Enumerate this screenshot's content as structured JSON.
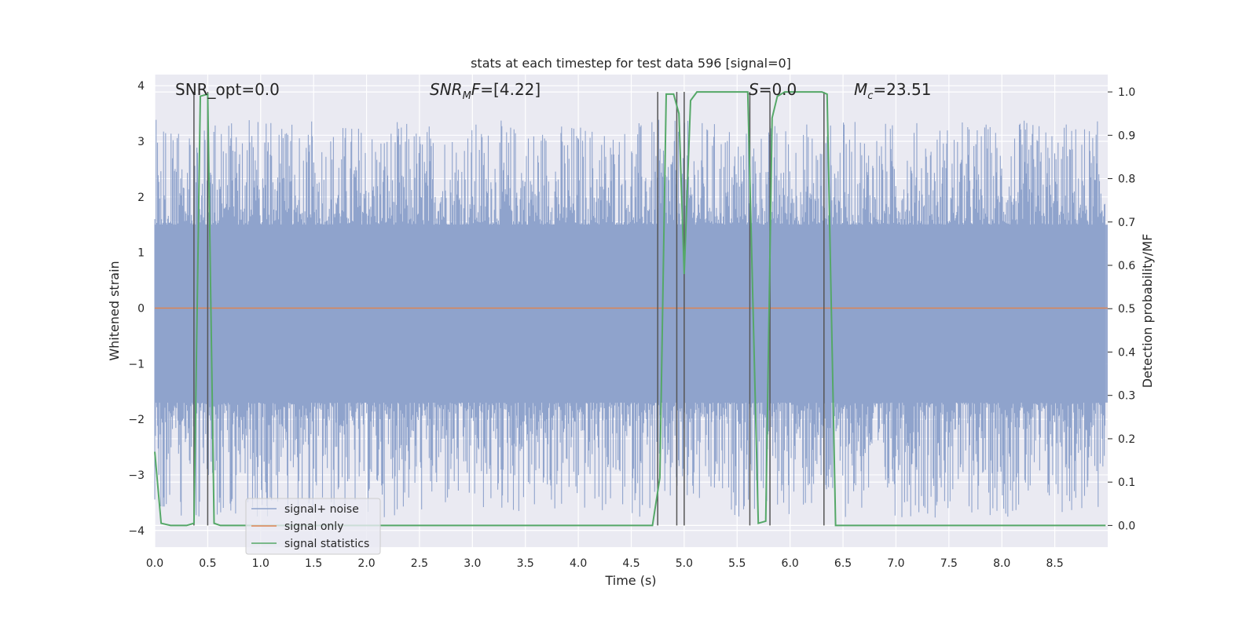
{
  "chart_data": {
    "type": "line",
    "title": "stats at each timestep for test data 596 [signal=0]",
    "xlabel": "Time (s)",
    "ylabel": "Whitened strain",
    "ylabel_right": "Detection probability/MF",
    "xlim": [
      0.0,
      9.0
    ],
    "ylim": [
      -4.3,
      4.2
    ],
    "ylim_right": [
      -0.05,
      1.04
    ],
    "x_ticks": [
      "0.0",
      "0.5",
      "1.0",
      "1.5",
      "2.0",
      "2.5",
      "3.0",
      "3.5",
      "4.0",
      "4.5",
      "5.0",
      "5.5",
      "6.0",
      "6.5",
      "7.0",
      "7.5",
      "8.0",
      "8.5"
    ],
    "y_ticks": [
      "−4",
      "−3",
      "−2",
      "−1",
      "0",
      "1",
      "2",
      "3",
      "4"
    ],
    "y_ticks_right": [
      "0.0",
      "0.1",
      "0.2",
      "0.3",
      "0.4",
      "0.5",
      "0.6",
      "0.7",
      "0.8",
      "0.9",
      "1.0"
    ],
    "grid": true,
    "legend_position": "lower-left",
    "annotations": {
      "snr_opt": "SNR_opt=0.0",
      "snr_mf": "=[4.22]",
      "snr_mf_sym": "SNR",
      "snr_mf_sub": "M",
      "snr_mf_tail": "F",
      "s": "S",
      "s_val": "=0.0",
      "mc": "M",
      "mc_sub": "c",
      "mc_val": "=23.51"
    },
    "series": [
      {
        "name": "signal+ noise",
        "color": "#8fa3cc",
        "kind": "noise-band",
        "typical_range": [
          -1.7,
          1.5
        ],
        "extreme_range": [
          -4.0,
          3.6
        ]
      },
      {
        "name": "signal only",
        "color": "#dd8452",
        "x": [
          0.0,
          9.0
        ],
        "y": [
          0.0,
          0.0
        ]
      },
      {
        "name": "signal statistics",
        "color": "#55a868",
        "axis": "right",
        "x": [
          0.0,
          0.06,
          0.15,
          0.3,
          0.37,
          0.43,
          0.5,
          0.56,
          0.62,
          4.7,
          4.77,
          4.83,
          4.9,
          4.95,
          5.0,
          5.06,
          5.12,
          5.6,
          5.7,
          5.77,
          5.83,
          5.88,
          5.95,
          6.3,
          6.35,
          6.43,
          8.98
        ],
        "y": [
          0.17,
          0.005,
          0.0,
          0.0,
          0.005,
          0.99,
          0.995,
          0.005,
          0.0,
          0.0,
          0.11,
          0.995,
          0.995,
          0.95,
          0.58,
          0.98,
          1.0,
          1.0,
          0.005,
          0.01,
          0.94,
          0.99,
          1.0,
          1.0,
          0.995,
          0.0,
          0.0
        ]
      }
    ],
    "vertical_markers": [
      0.37,
      0.5,
      4.75,
      4.93,
      5.0,
      5.62,
      5.81,
      6.32
    ]
  }
}
